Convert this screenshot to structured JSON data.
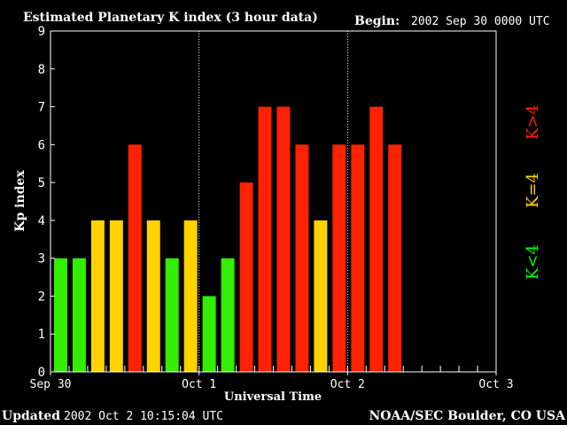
{
  "header": {
    "title": "Estimated Planetary K index (3 hour data)",
    "begin_label": "Begin:",
    "begin_value": "2002 Sep 30 0000 UTC"
  },
  "footer": {
    "updated_label": "Updated",
    "updated_value": "2002 Oct  2 10:15:04 UTC",
    "credit": "NOAA/SEC Boulder, CO USA"
  },
  "legend": [
    {
      "text": "K<4",
      "color": "#00ff00"
    },
    {
      "text": "K=4",
      "color": "#ffd700"
    },
    {
      "text": "K>4",
      "color": "#ff2200"
    }
  ],
  "colors": {
    "low": "#33ee00",
    "mid": "#ffd200",
    "high": "#ff2200"
  },
  "chart_data": {
    "type": "bar",
    "title": "Estimated Planetary K index (3 hour data)",
    "xlabel": "Universal Time",
    "ylabel": "Kp index",
    "ylim": [
      0,
      9
    ],
    "yticks": [
      "0",
      "1",
      "2",
      "3",
      "4",
      "5",
      "6",
      "7",
      "8",
      "9"
    ],
    "xticks": [
      "Sep 30",
      "Oct 1",
      "Oct 2",
      "Oct 3"
    ],
    "x_range_days": 3,
    "bars_per_day": 8,
    "values": [
      3,
      3,
      4,
      4,
      6,
      4,
      3,
      4,
      2,
      3,
      5,
      7,
      7,
      6,
      4,
      6,
      6,
      7,
      6
    ],
    "legend": [
      "K<4",
      "K=4",
      "K>4"
    ],
    "day_dividers": "dotted"
  }
}
